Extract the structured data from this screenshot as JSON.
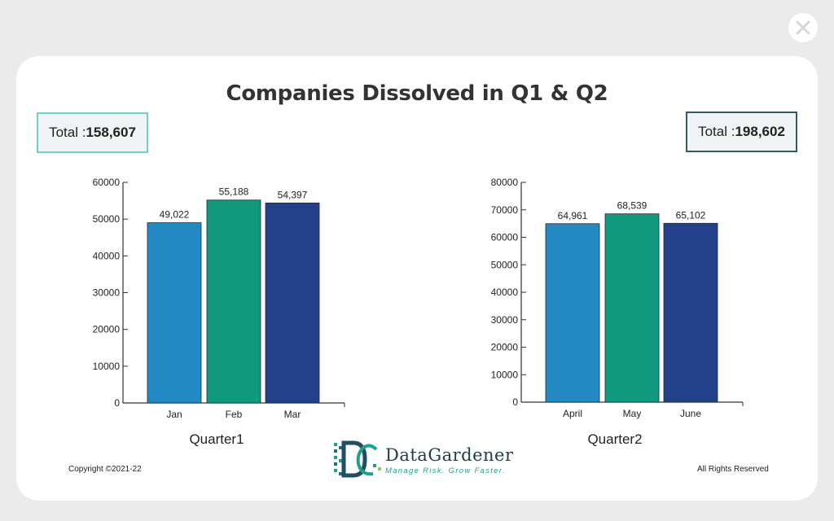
{
  "page": {
    "title": "Companies Dissolved in Q1 & Q2",
    "footer_left": "Copyright ©2021-22",
    "footer_right": "All Rights Reserved",
    "logo_name": "DataGardener",
    "logo_tagline": "Manage Risk. Grow Faster.",
    "close_icon": "close-icon"
  },
  "totals": {
    "q1_prefix": "Total : ",
    "q1_value": "158,607",
    "q2_prefix": "Total : ",
    "q2_value": "198,602"
  },
  "chart_data": [
    {
      "type": "bar",
      "title": "",
      "xlabel": "Quarter1",
      "ylabel": "",
      "categories": [
        "Jan",
        "Feb",
        "Mar"
      ],
      "values": [
        49022,
        55188,
        54397
      ],
      "value_labels": [
        "49,022",
        "55,188",
        "54,397"
      ],
      "colors": [
        "#2389c2",
        "#109a7d",
        "#22418a"
      ],
      "ylim": [
        0,
        60000
      ],
      "yticks": [
        0,
        10000,
        20000,
        30000,
        40000,
        50000,
        60000
      ],
      "grid": false
    },
    {
      "type": "bar",
      "title": "",
      "xlabel": "Quarter2",
      "ylabel": "",
      "categories": [
        "April",
        "May",
        "June"
      ],
      "values": [
        64961,
        68539,
        65102
      ],
      "value_labels": [
        "64,961",
        "68,539",
        "65,102"
      ],
      "colors": [
        "#2389c2",
        "#109a7d",
        "#22418a"
      ],
      "ylim": [
        0,
        80000
      ],
      "yticks": [
        0,
        10000,
        20000,
        30000,
        40000,
        50000,
        60000,
        70000,
        80000
      ],
      "grid": false
    }
  ]
}
